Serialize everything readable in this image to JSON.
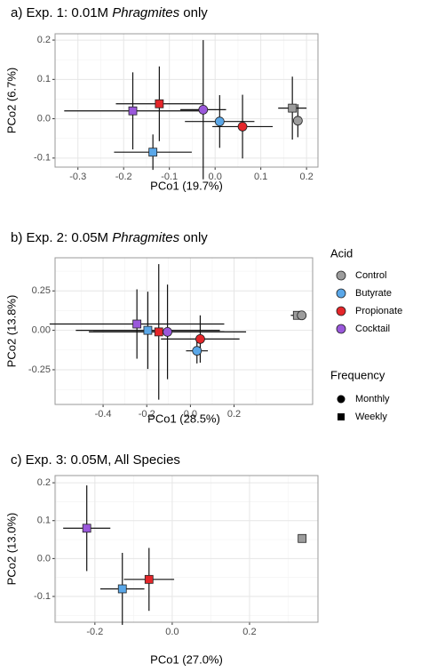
{
  "chart_data": [
    {
      "type": "scatter",
      "title": "a) Exp. 1: 0.01M Phragmites only",
      "title_italic": "Phragmites",
      "x_label": "PCo1 (19.7%)",
      "y_label": "PCo2 (6.7%)",
      "xlim": [
        -0.35,
        0.225
      ],
      "ylim": [
        -0.123,
        0.216
      ],
      "xticks": [
        -0.3,
        -0.2,
        -0.1,
        {
          "value": 0,
          "label": "0.0"
        },
        0.1,
        0.2
      ],
      "yticks": [
        -0.1,
        {
          "value": 0,
          "label": "0.0"
        },
        0.1,
        0.2
      ],
      "grid": true,
      "points": [
        {
          "acid": "Cocktail",
          "frequency": "Weekly",
          "x": -0.18,
          "y": 0.02,
          "xerr": 0.15,
          "yerr": 0.098
        },
        {
          "acid": "Propionate",
          "frequency": "Weekly",
          "x": -0.122,
          "y": 0.038,
          "xerr": 0.095,
          "yerr": 0.095
        },
        {
          "acid": "Butyrate",
          "frequency": "Weekly",
          "x": -0.136,
          "y": -0.085,
          "xerr": 0.085,
          "yerr": 0.045
        },
        {
          "acid": "Cocktail",
          "frequency": "Monthly",
          "x": -0.026,
          "y": 0.023,
          "xerr": 0.05,
          "yerr": 0.177
        },
        {
          "acid": "Butyrate",
          "frequency": "Monthly",
          "x": 0.01,
          "y": -0.007,
          "xerr": 0.076,
          "yerr": 0.067
        },
        {
          "acid": "Propionate",
          "frequency": "Monthly",
          "x": 0.06,
          "y": -0.02,
          "xerr": 0.066,
          "yerr": 0.081
        },
        {
          "acid": "Control",
          "frequency": "Weekly",
          "x": 0.169,
          "y": 0.027,
          "xerr": 0.031,
          "yerr": 0.08
        },
        {
          "acid": "Control",
          "frequency": "Monthly",
          "x": 0.181,
          "y": -0.005,
          "xerr": 0.008,
          "yerr": 0.042
        }
      ]
    },
    {
      "type": "scatter",
      "title": "b) Exp. 2: 0.05M Phragmites only",
      "title_italic": "Phragmites",
      "x_label": "PCo1 (28.5%)",
      "y_label": "PCo2 (13.8%)",
      "xlim": [
        -0.62,
        0.56
      ],
      "ylim": [
        -0.47,
        0.46
      ],
      "xticks": [
        -0.4,
        -0.2,
        {
          "value": 0,
          "label": "0.0"
        },
        0.2
      ],
      "yticks": [
        -0.25,
        {
          "value": 0,
          "label": "0.00"
        },
        0.25
      ],
      "grid": true,
      "points": [
        {
          "acid": "Cocktail",
          "frequency": "Weekly",
          "x": -0.245,
          "y": 0.04,
          "xerr": 0.4,
          "yerr": 0.22
        },
        {
          "acid": "Butyrate",
          "frequency": "Weekly",
          "x": -0.195,
          "y": 0.0,
          "xerr": 0.33,
          "yerr": 0.245
        },
        {
          "acid": "Propionate",
          "frequency": "Weekly",
          "x": -0.145,
          "y": -0.01,
          "xerr": 0.3,
          "yerr": 0.43
        },
        {
          "acid": "Cocktail",
          "frequency": "Monthly",
          "x": -0.105,
          "y": -0.01,
          "xerr": 0.36,
          "yerr": 0.3
        },
        {
          "acid": "Butyrate",
          "frequency": "Monthly",
          "x": 0.03,
          "y": -0.13,
          "xerr": 0.05,
          "yerr": 0.08
        },
        {
          "acid": "Propionate",
          "frequency": "Monthly",
          "x": 0.045,
          "y": -0.055,
          "xerr": 0.18,
          "yerr": 0.15
        },
        {
          "acid": "Control",
          "frequency": "Weekly",
          "x": 0.49,
          "y": 0.095,
          "xerr": 0.03,
          "yerr": 0.0
        },
        {
          "acid": "Control",
          "frequency": "Monthly",
          "x": 0.51,
          "y": 0.095,
          "xerr": 0.01,
          "yerr": 0.0
        }
      ]
    },
    {
      "type": "scatter",
      "title": "c) Exp. 3: 0.05M, All Species",
      "x_label": "PCo1 (27.0%)",
      "y_label": "PCo2 (13.0%)",
      "xlim": [
        -0.303,
        0.377
      ],
      "ylim": [
        -0.168,
        0.219
      ],
      "xticks": [
        -0.2,
        {
          "value": 0,
          "label": "0.0"
        },
        0.2
      ],
      "yticks": [
        -0.1,
        {
          "value": 0,
          "label": "0.0"
        },
        0.1,
        0.2
      ],
      "grid": true,
      "points": [
        {
          "acid": "Cocktail",
          "frequency": "Weekly",
          "x": -0.221,
          "y": 0.08,
          "xerr": 0.061,
          "yerr": 0.113
        },
        {
          "acid": "Butyrate",
          "frequency": "Weekly",
          "x": -0.129,
          "y": -0.08,
          "xerr": 0.057,
          "yerr": 0.095
        },
        {
          "acid": "Propionate",
          "frequency": "Weekly",
          "x": -0.06,
          "y": -0.055,
          "xerr": 0.065,
          "yerr": 0.083
        },
        {
          "acid": "Control",
          "frequency": "Weekly",
          "x": 0.336,
          "y": 0.053,
          "xerr": 0.008,
          "yerr": 0.0
        }
      ]
    }
  ],
  "legend": {
    "acid": {
      "title": "Acid",
      "items": [
        {
          "name": "Control",
          "color": "#9c9c9c"
        },
        {
          "name": "Butyrate",
          "color": "#5aa7e8"
        },
        {
          "name": "Propionate",
          "color": "#e5262a"
        },
        {
          "name": "Cocktail",
          "color": "#9a58db"
        }
      ]
    },
    "frequency": {
      "title": "Frequency",
      "items": [
        {
          "name": "Monthly",
          "shape": "circle"
        },
        {
          "name": "Weekly",
          "shape": "square"
        }
      ]
    }
  }
}
